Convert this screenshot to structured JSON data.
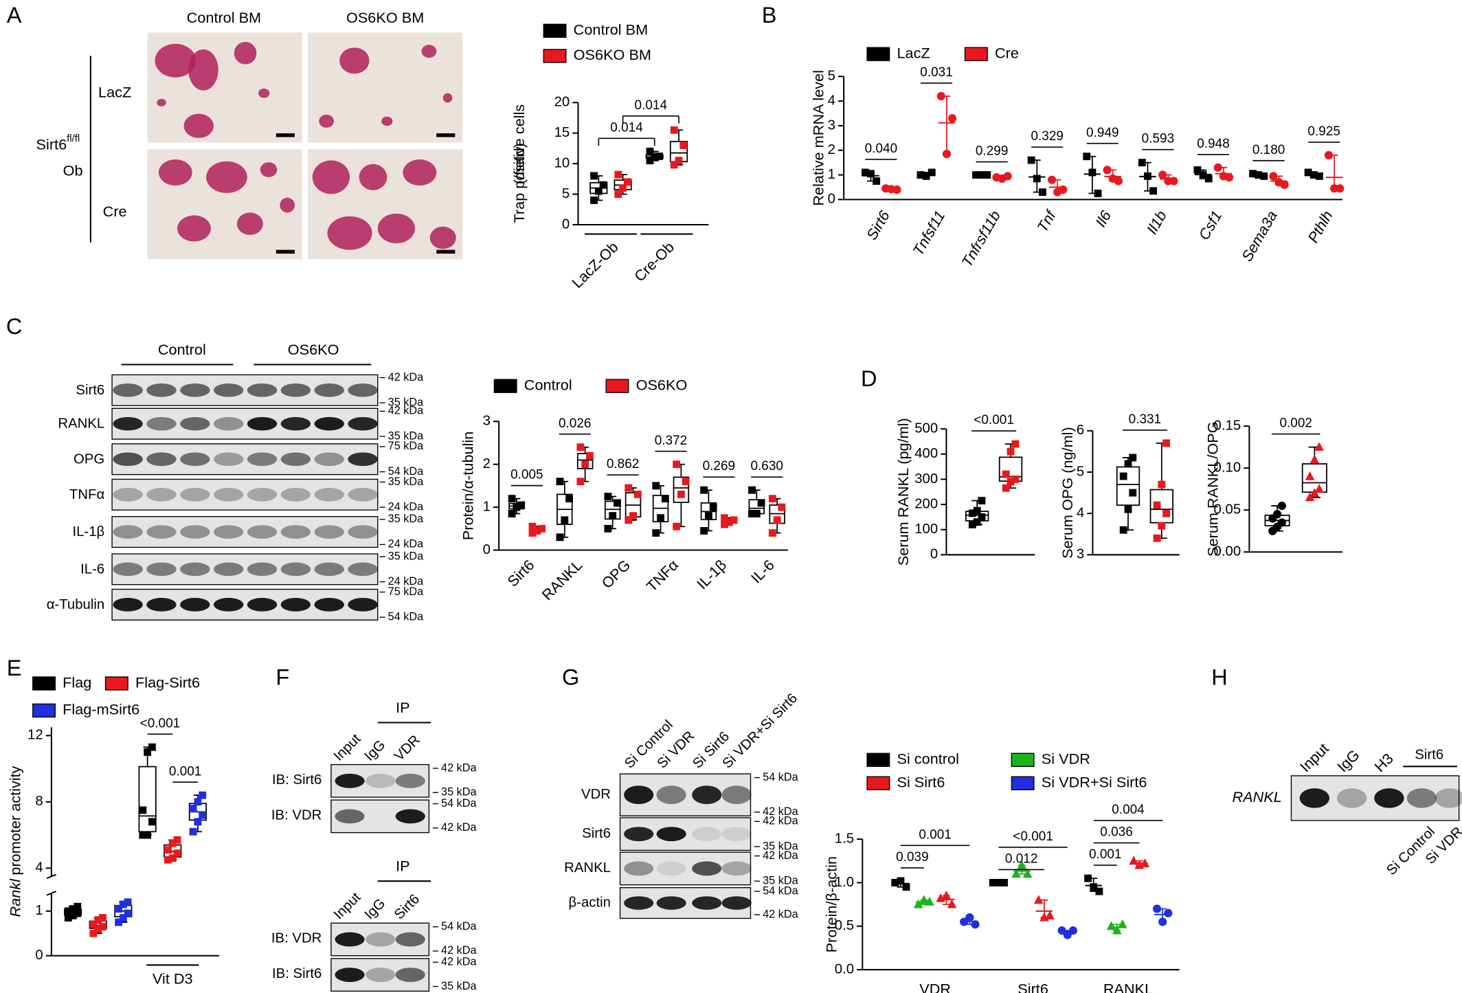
{
  "panel_letters": [
    "A",
    "B",
    "C",
    "D",
    "E",
    "F",
    "G",
    "H"
  ],
  "panel_a": {
    "columns": [
      "Control BM",
      "OS6KO BM"
    ],
    "rows": [
      "LacZ",
      "Cre"
    ],
    "genotype": "Sirt6",
    "genotype_sup": "fl/fl",
    "genotype_line2": "Ob"
  },
  "panel_c_blot": {
    "groups": [
      "Control",
      "OS6KO"
    ],
    "rows": [
      "Sirt6",
      "RANKL",
      "OPG",
      "TNFα",
      "IL-1β",
      "IL-6",
      "α-Tubulin"
    ],
    "markers": [
      [
        "42 kDa",
        "35 kDa"
      ],
      [
        "42 kDa",
        "35 kDa"
      ],
      [
        "75 kDa",
        "54 kDa"
      ],
      [
        "35 kDa",
        "24 kDa"
      ],
      [
        "35 kDa",
        "24 kDa"
      ],
      [
        "35 kDa",
        "24 kDa"
      ],
      [
        "75 kDa",
        "54 kDa"
      ]
    ]
  },
  "panel_f": {
    "top": {
      "ip": "IP",
      "lanes": [
        "Input",
        "IgG",
        "VDR"
      ],
      "rows": [
        "IB: Sirt6",
        "IB: VDR"
      ],
      "markers": [
        [
          "42 kDa",
          "35 kDa"
        ],
        [
          "54 kDa",
          "42 kDa"
        ]
      ]
    },
    "bottom": {
      "ip": "IP",
      "lanes": [
        "Input",
        "IgG",
        "Sirt6"
      ],
      "rows": [
        "IB: VDR",
        "IB: Sirt6"
      ],
      "markers": [
        [
          "54 kDa",
          "42 kDa"
        ],
        [
          "42 kDa",
          "35 kDa"
        ]
      ]
    }
  },
  "panel_g_blot": {
    "lanes": [
      "Si Control",
      "Si VDR",
      "Si Sirt6",
      "Si VDR+Si Sirt6"
    ],
    "rows": [
      "VDR",
      "Sirt6",
      "RANKL",
      "β-actin"
    ],
    "markers": [
      [
        "54 kDa",
        "42 kDa"
      ],
      [
        "42 kDa",
        "35 kDa"
      ],
      [
        "42 kDa",
        "35 kDa"
      ],
      [
        "54 kDa",
        "42 kDa"
      ]
    ]
  },
  "panel_h": {
    "lanes": [
      "Input",
      "IgG",
      "H3"
    ],
    "group": "Sirt6",
    "sublanes": [
      "Si Control",
      "Si VDR"
    ],
    "row": "RANKL"
  },
  "chart_data": [
    {
      "type": "box",
      "ylabel": [
        "Trap positive cells",
        "(/field)"
      ],
      "categories": [
        "LacZ-Ob",
        "Cre-Ob"
      ],
      "series": [
        {
          "name": "Control BM",
          "color": "#000000",
          "values": [
            [
              4,
              5.5,
              6.5,
              8
            ],
            [
              10.5,
              11,
              11.2,
              12
            ]
          ]
        },
        {
          "name": "OS6KO BM",
          "color": "#e8191e",
          "values": [
            [
              5,
              6,
              7,
              8.2
            ],
            [
              9.8,
              10.5,
              13,
              15.5
            ]
          ]
        }
      ],
      "ylim": [
        0,
        20
      ],
      "yticks": [
        0,
        5,
        10,
        15,
        20
      ],
      "comparisons": [
        {
          "text": "0.014",
          "from": [
            0,
            0
          ],
          "to": [
            1,
            0
          ]
        },
        {
          "text": "0.014",
          "from": [
            0,
            1
          ],
          "to": [
            1,
            1
          ]
        }
      ]
    },
    {
      "type": "dot",
      "ylabel": "Relative mRNA level",
      "italic_categories": true,
      "categories": [
        "Sirt6",
        "Tnfsf11",
        "Tnfrsf11b",
        "Tnf",
        "Il6",
        "Il1b",
        "Csf1",
        "Sema3a",
        "Pthlh"
      ],
      "series": [
        {
          "name": "LacZ",
          "color": "#000000",
          "marker": "square",
          "values": [
            [
              1.1,
              1.05,
              0.75
            ],
            [
              1.0,
              0.95,
              1.1
            ],
            [
              1.0,
              1.0,
              1.0
            ],
            [
              1.6,
              0.85,
              0.3
            ],
            [
              1.75,
              1.1,
              0.25
            ],
            [
              1.5,
              0.95,
              0.35
            ],
            [
              1.2,
              1.0,
              0.85
            ],
            [
              1.05,
              1.0,
              0.95
            ],
            [
              1.1,
              1.0,
              0.95
            ]
          ]
        },
        {
          "name": "Cre",
          "color": "#e8191e",
          "marker": "circle",
          "values": [
            [
              0.45,
              0.42,
              0.4
            ],
            [
              4.2,
              1.85,
              3.3
            ],
            [
              0.9,
              0.85,
              0.95
            ],
            [
              0.8,
              0.3,
              0.4
            ],
            [
              1.2,
              0.85,
              0.75
            ],
            [
              1.0,
              0.75,
              0.75
            ],
            [
              1.3,
              0.95,
              0.9
            ],
            [
              0.95,
              0.7,
              0.6
            ],
            [
              1.8,
              0.45,
              0.45
            ]
          ]
        }
      ],
      "ylim": [
        0,
        5
      ],
      "yticks": [
        0,
        1,
        2,
        3,
        4,
        5
      ],
      "pvalues": [
        "0.040",
        "0.031",
        "0.299",
        "0.329",
        "0.949",
        "0.593",
        "0.948",
        "0.180",
        "0.925"
      ]
    },
    {
      "type": "box",
      "ylabel": "Protein/α-tubulin",
      "categories": [
        "Sirt6",
        "RANKL",
        "OPG",
        "TNFα",
        "IL-1β",
        "IL-6"
      ],
      "series": [
        {
          "name": "Control",
          "color": "#000000",
          "values": [
            [
              0.85,
              1.0,
              1.05,
              1.2
            ],
            [
              0.3,
              0.7,
              1.2,
              1.6
            ],
            [
              0.5,
              0.8,
              1.1,
              1.25
            ],
            [
              0.4,
              0.75,
              1.2,
              1.5
            ],
            [
              0.45,
              0.8,
              1.0,
              1.4
            ],
            [
              0.85,
              0.85,
              1.1,
              1.4
            ]
          ]
        },
        {
          "name": "OS6KO",
          "color": "#e8191e",
          "values": [
            [
              0.4,
              0.45,
              0.5,
              0.55
            ],
            [
              1.6,
              2.0,
              2.2,
              2.4
            ],
            [
              0.7,
              0.8,
              1.3,
              1.45
            ],
            [
              0.55,
              1.3,
              1.6,
              2.0
            ],
            [
              0.6,
              0.65,
              0.7,
              0.75
            ],
            [
              0.4,
              0.7,
              1.0,
              1.2
            ]
          ]
        }
      ],
      "ylim": [
        0,
        3
      ],
      "yticks": [
        0,
        1,
        2,
        3
      ],
      "pvalues": [
        "0.005",
        "0.026",
        "0.862",
        "0.372",
        "0.269",
        "0.630"
      ]
    },
    {
      "type": "box",
      "ylabel": "Serum RANKL (pg/ml)",
      "categories": [
        null
      ],
      "series": [
        {
          "color": "#000000",
          "values": [
            [
              120,
              130,
              150,
              165,
              175,
              215
            ]
          ]
        },
        {
          "color": "#e8191e",
          "values": [
            [
              265,
              290,
              300,
              320,
              410,
              440
            ]
          ]
        }
      ],
      "ylim": [
        0,
        500
      ],
      "yticks": [
        0,
        100,
        200,
        300,
        400,
        500
      ],
      "pvalues": [
        "<0.001"
      ]
    },
    {
      "type": "box",
      "ylabel": "Serum OPG (ng/ml)",
      "categories": [
        null
      ],
      "series": [
        {
          "color": "#000000",
          "values": [
            [
              3.6,
              4.1,
              4.5,
              4.9,
              5.2,
              5.35
            ]
          ]
        },
        {
          "color": "#e8191e",
          "values": [
            [
              3.4,
              3.7,
              4.0,
              4.2,
              4.7,
              5.7
            ]
          ]
        }
      ],
      "ylim": [
        3,
        6
      ],
      "yticks": [
        3,
        4,
        5,
        6
      ],
      "pvalues": [
        "0.331"
      ]
    },
    {
      "type": "box",
      "ylabel": "Serum RANKL/OPG",
      "categories": [
        null
      ],
      "series": [
        {
          "color": "#000000",
          "marker": "circle",
          "values": [
            [
              0.025,
              0.03,
              0.035,
              0.04,
              0.045,
              0.055
            ]
          ]
        },
        {
          "color": "#e8191e",
          "marker": "triangle",
          "values": [
            [
              0.065,
              0.07,
              0.075,
              0.09,
              0.11,
              0.125
            ]
          ]
        }
      ],
      "ylim": [
        0,
        0.15
      ],
      "yticks": [
        {
          "value": 0,
          "label": "0.00"
        },
        {
          "value": 0.05,
          "label": "0.05"
        },
        {
          "value": 0.1,
          "label": "0.10"
        },
        {
          "value": 0.15,
          "label": "0.15"
        }
      ],
      "pvalues": [
        "0.002"
      ]
    },
    {
      "type": "box",
      "ylabel_gene": "Rankl",
      "ylabel": "promoter activity",
      "categories": [
        null,
        "Vit D3"
      ],
      "series": [
        {
          "name": "Flag",
          "color": "#000000",
          "values": [
            [
              0.85,
              0.9,
              0.95,
              1.0,
              1.05,
              1.1
            ],
            [
              6.0,
              6.0,
              6.8,
              7.5,
              11.0,
              11.3
            ]
          ]
        },
        {
          "name": "Flag-Sirt6",
          "color": "#e8191e",
          "values": [
            [
              0.5,
              0.6,
              0.65,
              0.7,
              0.8,
              0.85
            ],
            [
              4.5,
              4.6,
              4.9,
              5.1,
              5.5,
              5.7
            ]
          ]
        },
        {
          "name": "Flag-mSirt6",
          "color": "#1f2fe0",
          "values": [
            [
              0.75,
              0.85,
              0.95,
              1.05,
              1.15,
              1.2
            ],
            [
              6.2,
              6.8,
              7.2,
              7.6,
              8.0,
              8.4
            ]
          ]
        }
      ],
      "ylim": [
        0,
        12.5
      ],
      "ybreak": [
        1.4,
        3.5
      ],
      "yticks": [
        0,
        1,
        4,
        8,
        12
      ],
      "comparisons": [
        {
          "text": "<0.001",
          "from": [
            1,
            0
          ],
          "to": [
            1,
            1
          ]
        },
        {
          "text": "0.001",
          "from": [
            1,
            1
          ],
          "to": [
            1,
            2
          ]
        }
      ]
    },
    {
      "type": "dot",
      "ylabel": "Protein/β-actin",
      "categories": [
        "VDR",
        "Sirt6",
        "RANKL"
      ],
      "series": [
        {
          "name": "Si control",
          "color": "#000000",
          "marker": "square",
          "values": [
            [
              1.0,
              1.02,
              0.95
            ],
            [
              1.0,
              1.0,
              1.0
            ],
            [
              1.05,
              0.95,
              0.9
            ]
          ]
        },
        {
          "name": "Si VDR",
          "color": "#1db31d",
          "marker": "triangle",
          "values": [
            [
              0.75,
              0.8,
              0.78
            ],
            [
              1.1,
              1.2,
              1.1
            ],
            [
              0.5,
              0.45,
              0.52
            ]
          ]
        },
        {
          "name": "Si Sirt6",
          "color": "#e8191e",
          "marker": "triangle",
          "values": [
            [
              0.82,
              0.85,
              0.75
            ],
            [
              0.8,
              0.6,
              0.62
            ],
            [
              1.25,
              1.2,
              1.22
            ]
          ]
        },
        {
          "name": "Si VDR+Si Sirt6",
          "color": "#1f2fe0",
          "marker": "circle",
          "values": [
            [
              0.55,
              0.6,
              0.52
            ],
            [
              0.45,
              0.4,
              0.45
            ],
            [
              0.7,
              0.55,
              0.65
            ]
          ]
        }
      ],
      "ylim": [
        0,
        1.5
      ],
      "yticks": [
        {
          "value": 0,
          "label": "0.0"
        },
        {
          "value": 0.5,
          "label": "0.5"
        },
        {
          "value": 1,
          "label": "1.0"
        },
        {
          "value": 1.5,
          "label": "1.5"
        }
      ],
      "comparisons": [
        {
          "text": "0.039",
          "from": [
            0,
            0
          ],
          "to": [
            0,
            1
          ]
        },
        {
          "text": "0.001",
          "from": [
            0,
            0
          ],
          "to": [
            0,
            3
          ]
        },
        {
          "text": "0.012",
          "from": [
            1,
            0
          ],
          "to": [
            1,
            2
          ]
        },
        {
          "text": "<0.001",
          "from": [
            1,
            0
          ],
          "to": [
            1,
            3
          ]
        },
        {
          "text": "0.001",
          "from": [
            2,
            0
          ],
          "to": [
            2,
            1
          ]
        },
        {
          "text": "0.036",
          "from": [
            2,
            0
          ],
          "to": [
            2,
            2
          ]
        },
        {
          "text": "0.004",
          "from": [
            2,
            0
          ],
          "to": [
            2,
            3
          ]
        }
      ]
    }
  ]
}
